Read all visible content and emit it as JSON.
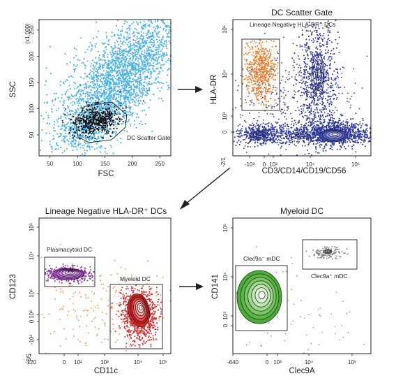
{
  "colors": {
    "fsc_ssc": "#4ab0e8",
    "dc_gate_events": "#111111",
    "lineage_neg": "#f07a2a",
    "lineage_pos": "#2f3a9a",
    "pdc": "#8a3aa3",
    "mdc": "#d32c2c",
    "clec9a_neg": "#4fa83a",
    "clec9a_pos": "#8a8a8a",
    "sparse": "#f5a06a",
    "arrow": "#231f20"
  },
  "chart_data": [
    {
      "type": "scatter",
      "panel": "fsc-ssc",
      "title": "",
      "xlabel": "FSC",
      "ylabel": "SSC",
      "y_unit_note": "(x1,000)",
      "xticks": [
        "50",
        "100",
        "150",
        "200",
        "250"
      ],
      "yticks": [
        "50",
        "100",
        "150",
        "200",
        "250"
      ],
      "xlim": [
        30,
        270
      ],
      "ylim": [
        10,
        270
      ],
      "gates": [
        {
          "label": "DC Scatter Gate"
        }
      ]
    },
    {
      "type": "scatter",
      "panel": "dc-scatter-gate",
      "title": "DC Scatter Gate",
      "xlabel": "CD3/CD14/CD19/CD56",
      "ylabel": "HLA-DR",
      "xticks": [
        "-10³",
        "0",
        "10³",
        "10⁴",
        "10⁵"
      ],
      "yticks": [
        "0",
        "10³",
        "10⁴",
        "10⁵"
      ],
      "corner_tick": "-2/1",
      "gates": [
        {
          "label": "Lineage Negative HLA-DR⁺ DCs"
        }
      ]
    },
    {
      "type": "scatter",
      "panel": "lineage-negative",
      "title": "Lineage Negative HLA-DR⁺ DCs",
      "xlabel": "CD11c",
      "ylabel": "CD123",
      "xticks": [
        "-120",
        "0",
        "10²",
        "10³",
        "10⁴",
        "10⁵"
      ],
      "yticks": [
        "-10²",
        "0",
        "10²",
        "10³",
        "10⁴",
        "10⁵"
      ],
      "corner_tick": "-8/5",
      "gates": [
        {
          "label": "Plasmacytoid DC"
        },
        {
          "label": "Myeloid DC"
        }
      ]
    },
    {
      "type": "scatter",
      "panel": "myeloid-dc",
      "title": "Myeloid DC",
      "xlabel": "Clec9A",
      "ylabel": "CD141",
      "xticks": [
        "-640",
        "0",
        "10³",
        "10⁴",
        "10⁵"
      ],
      "yticks": [
        "0",
        "10³",
        "10⁴",
        "10⁵"
      ],
      "gates": [
        {
          "label": "Clec9a⁻ mDC"
        },
        {
          "label": "Clec9a⁺ mDC"
        }
      ]
    }
  ]
}
